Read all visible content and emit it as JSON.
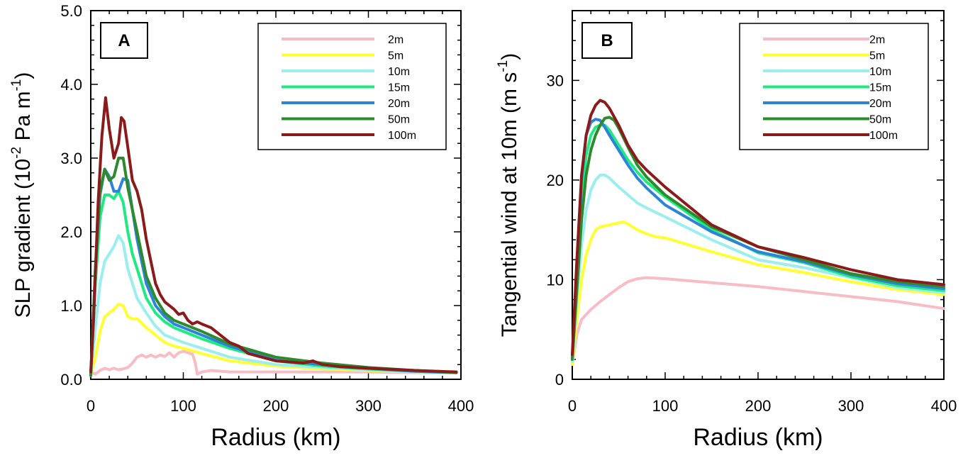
{
  "chart_data": [
    {
      "type": "line",
      "panel_label": "A",
      "xlabel": "Radius  (km)",
      "ylabel": {
        "base": "SLP gradient  (10",
        "sup1": "-2",
        "mid": " Pa m",
        "sup2": "-1",
        "end": ")"
      },
      "xlim": [
        0,
        400
      ],
      "ylim": [
        0,
        5
      ],
      "xticks": [
        0,
        100,
        200,
        300,
        400
      ],
      "xtick_labels": [
        "0",
        "100",
        "200",
        "300",
        "400"
      ],
      "yticks": [
        0,
        1,
        2,
        3,
        4,
        5
      ],
      "ytick_labels": [
        "0.0",
        "1.0",
        "2.0",
        "3.0",
        "4.0",
        "5.0"
      ],
      "legend_position": "top-right",
      "series": [
        {
          "name": "2m",
          "color": "#f8bcc4",
          "x": [
            0,
            5,
            10,
            15,
            20,
            25,
            30,
            35,
            40,
            45,
            50,
            55,
            60,
            65,
            70,
            75,
            80,
            85,
            90,
            95,
            100,
            105,
            110,
            113,
            115,
            120,
            130,
            150,
            200,
            250,
            300,
            350,
            395
          ],
          "y": [
            0.1,
            0.07,
            0.12,
            0.15,
            0.13,
            0.15,
            0.13,
            0.14,
            0.16,
            0.22,
            0.3,
            0.33,
            0.3,
            0.33,
            0.3,
            0.33,
            0.31,
            0.36,
            0.3,
            0.36,
            0.38,
            0.36,
            0.34,
            0.22,
            0.07,
            0.1,
            0.12,
            0.1,
            0.1,
            0.1,
            0.1,
            0.09,
            0.09
          ]
        },
        {
          "name": "5m",
          "color": "#ffff33",
          "x": [
            0,
            5,
            10,
            15,
            20,
            25,
            30,
            35,
            40,
            45,
            50,
            60,
            70,
            80,
            90,
            100,
            120,
            150,
            200,
            250,
            300,
            350,
            395
          ],
          "y": [
            0.05,
            0.3,
            0.65,
            0.85,
            0.9,
            0.95,
            1.02,
            1.0,
            0.85,
            0.82,
            0.82,
            0.7,
            0.6,
            0.5,
            0.45,
            0.42,
            0.35,
            0.25,
            0.18,
            0.14,
            0.12,
            0.1,
            0.09
          ]
        },
        {
          "name": "10m",
          "color": "#9beeee",
          "x": [
            0,
            5,
            10,
            15,
            20,
            25,
            30,
            35,
            40,
            45,
            50,
            60,
            70,
            80,
            90,
            100,
            120,
            150,
            200,
            250,
            300,
            350,
            395
          ],
          "y": [
            0.05,
            0.7,
            1.3,
            1.6,
            1.7,
            1.8,
            1.95,
            1.85,
            1.5,
            1.3,
            1.1,
            0.9,
            0.72,
            0.6,
            0.55,
            0.5,
            0.42,
            0.3,
            0.2,
            0.16,
            0.13,
            0.1,
            0.09
          ]
        },
        {
          "name": "15m",
          "color": "#1fea82",
          "x": [
            0,
            5,
            10,
            15,
            20,
            25,
            30,
            35,
            40,
            45,
            50,
            55,
            60,
            70,
            80,
            90,
            100,
            120,
            150,
            200,
            250,
            300,
            350,
            395
          ],
          "y": [
            0.05,
            1.3,
            2.2,
            2.5,
            2.5,
            2.45,
            2.55,
            2.4,
            2.0,
            1.7,
            1.5,
            1.3,
            1.1,
            0.9,
            0.78,
            0.7,
            0.65,
            0.55,
            0.42,
            0.25,
            0.18,
            0.14,
            0.11,
            0.09
          ]
        },
        {
          "name": "20m",
          "color": "#2d82da",
          "x": [
            0,
            5,
            10,
            15,
            20,
            25,
            30,
            35,
            40,
            45,
            50,
            55,
            60,
            70,
            80,
            90,
            100,
            120,
            150,
            200,
            250,
            300,
            350,
            395
          ],
          "y": [
            0.05,
            1.5,
            2.5,
            2.85,
            2.75,
            2.55,
            2.55,
            2.72,
            2.7,
            2.3,
            1.9,
            1.6,
            1.3,
            1.0,
            0.85,
            0.75,
            0.7,
            0.6,
            0.45,
            0.26,
            0.2,
            0.15,
            0.11,
            0.09
          ]
        },
        {
          "name": "50m",
          "color": "#2d8a2d",
          "x": [
            0,
            5,
            10,
            15,
            20,
            25,
            30,
            35,
            40,
            45,
            50,
            55,
            60,
            70,
            80,
            90,
            100,
            120,
            150,
            200,
            250,
            300,
            350,
            395
          ],
          "y": [
            0.05,
            1.5,
            2.55,
            2.85,
            2.7,
            2.75,
            3.0,
            3.0,
            2.6,
            2.3,
            2.0,
            1.7,
            1.4,
            1.1,
            0.9,
            0.8,
            0.75,
            0.65,
            0.48,
            0.3,
            0.22,
            0.16,
            0.12,
            0.09
          ]
        },
        {
          "name": "100m",
          "color": "#8b1a1a",
          "x": [
            0,
            3,
            8,
            12,
            16,
            20,
            25,
            30,
            33,
            36,
            40,
            45,
            50,
            55,
            60,
            65,
            70,
            75,
            80,
            90,
            95,
            100,
            105,
            110,
            115,
            120,
            130,
            140,
            150,
            160,
            170,
            200,
            230,
            240,
            250,
            270,
            300,
            350,
            395
          ],
          "y": [
            0.1,
            0.8,
            2.4,
            3.3,
            3.82,
            3.4,
            3.0,
            3.2,
            3.55,
            3.5,
            3.15,
            2.7,
            2.55,
            2.3,
            1.9,
            1.6,
            1.3,
            1.15,
            1.05,
            0.95,
            0.88,
            0.9,
            0.8,
            0.75,
            0.78,
            0.75,
            0.7,
            0.6,
            0.5,
            0.45,
            0.35,
            0.25,
            0.22,
            0.25,
            0.2,
            0.17,
            0.15,
            0.12,
            0.1
          ]
        }
      ]
    },
    {
      "type": "line",
      "panel_label": "B",
      "xlabel": "Radius  (km)",
      "ylabel": {
        "base": "Tangential wind at 10m  (m s",
        "sup1": "-1",
        "end": ")"
      },
      "xlim": [
        0,
        400
      ],
      "ylim": [
        0,
        37
      ],
      "xticks": [
        0,
        100,
        200,
        300,
        400
      ],
      "xtick_labels": [
        "0",
        "100",
        "200",
        "300",
        "400"
      ],
      "yticks": [
        0,
        10,
        20,
        30
      ],
      "ytick_labels": [
        "0",
        "10",
        "20",
        "30"
      ],
      "legend_position": "top-right",
      "series": [
        {
          "name": "2m",
          "color": "#f8bcc4",
          "x": [
            0,
            5,
            10,
            20,
            30,
            40,
            50,
            60,
            70,
            80,
            100,
            150,
            200,
            250,
            300,
            350,
            400
          ],
          "y": [
            1.5,
            4.5,
            6.0,
            7.0,
            7.8,
            8.5,
            9.2,
            9.8,
            10.1,
            10.2,
            10.1,
            9.7,
            9.3,
            8.8,
            8.3,
            7.8,
            7.1
          ]
        },
        {
          "name": "5m",
          "color": "#ffff33",
          "x": [
            0,
            5,
            10,
            15,
            20,
            25,
            30,
            40,
            50,
            55,
            60,
            70,
            80,
            90,
            100,
            150,
            200,
            250,
            300,
            350,
            400
          ],
          "y": [
            1.5,
            6.0,
            10.0,
            12.5,
            14.0,
            15.0,
            15.3,
            15.5,
            15.7,
            15.8,
            15.6,
            15.0,
            14.6,
            14.3,
            14.2,
            12.8,
            11.5,
            10.7,
            9.8,
            9.0,
            8.5
          ]
        },
        {
          "name": "10m",
          "color": "#9beeee",
          "x": [
            0,
            5,
            10,
            15,
            20,
            25,
            30,
            35,
            40,
            50,
            60,
            70,
            80,
            100,
            150,
            200,
            250,
            300,
            350,
            400
          ],
          "y": [
            1.8,
            8.0,
            13.5,
            17.0,
            19.0,
            20.0,
            20.5,
            20.5,
            20.2,
            19.3,
            18.5,
            17.7,
            17.2,
            16.3,
            14.0,
            12.0,
            11.2,
            10.2,
            9.2,
            8.7
          ]
        },
        {
          "name": "15m",
          "color": "#1fea82",
          "x": [
            0,
            5,
            10,
            15,
            20,
            25,
            30,
            35,
            40,
            50,
            60,
            70,
            80,
            100,
            150,
            200,
            250,
            300,
            350,
            400
          ],
          "y": [
            2.0,
            10.0,
            18.0,
            22.5,
            24.5,
            25.3,
            25.5,
            25.5,
            25.0,
            23.5,
            22.0,
            20.8,
            19.8,
            18.3,
            15.0,
            12.7,
            11.7,
            10.3,
            9.4,
            8.9
          ]
        },
        {
          "name": "20m",
          "color": "#2d82da",
          "x": [
            0,
            5,
            10,
            15,
            20,
            25,
            30,
            35,
            40,
            50,
            60,
            70,
            80,
            100,
            150,
            200,
            250,
            300,
            350,
            400
          ],
          "y": [
            2.0,
            11.0,
            20.0,
            24.5,
            25.8,
            26.1,
            26.0,
            25.3,
            24.5,
            23.0,
            21.5,
            20.2,
            19.2,
            17.5,
            14.8,
            12.8,
            11.8,
            10.5,
            9.6,
            9.1
          ]
        },
        {
          "name": "50m",
          "color": "#2d8a2d",
          "x": [
            0,
            5,
            10,
            15,
            20,
            25,
            30,
            35,
            40,
            45,
            50,
            60,
            70,
            80,
            100,
            150,
            200,
            250,
            300,
            350,
            400
          ],
          "y": [
            2.0,
            9.0,
            16.0,
            20.5,
            23.0,
            24.5,
            25.5,
            26.2,
            26.3,
            26.0,
            25.2,
            23.3,
            21.5,
            20.3,
            18.5,
            15.3,
            13.3,
            12.0,
            10.6,
            9.8,
            9.3
          ]
        },
        {
          "name": "100m",
          "color": "#8b1a1a",
          "x": [
            0,
            5,
            10,
            15,
            20,
            25,
            30,
            35,
            40,
            50,
            60,
            70,
            80,
            100,
            150,
            200,
            250,
            300,
            350,
            400
          ],
          "y": [
            2.5,
            12.0,
            20.5,
            24.5,
            26.5,
            27.5,
            28.0,
            27.8,
            27.2,
            25.5,
            23.5,
            22.0,
            21.0,
            19.3,
            15.5,
            13.3,
            12.2,
            11.0,
            10.0,
            9.5
          ]
        }
      ]
    }
  ]
}
